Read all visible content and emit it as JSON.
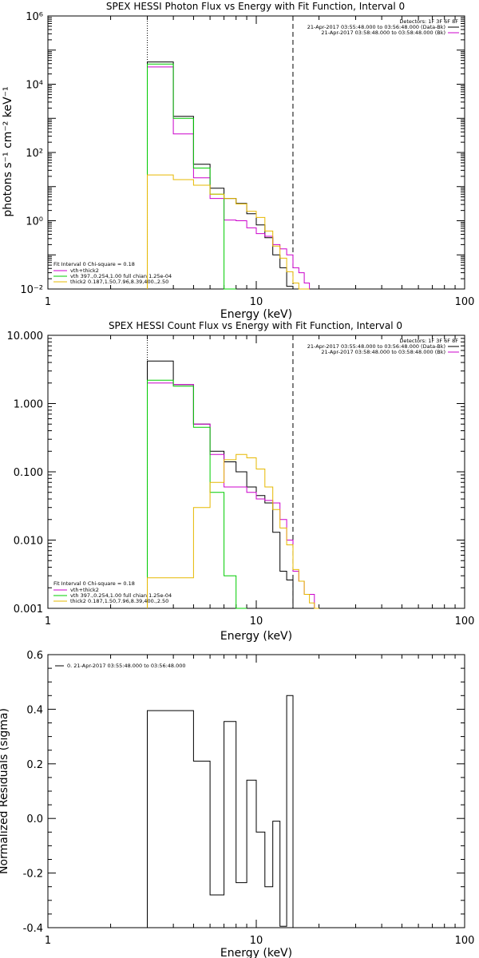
{
  "colors": {
    "total": "#000000",
    "vth_thick": "#cc00cc",
    "vth": "#00cc00",
    "thick": "#e6b800",
    "background": "#ffffff"
  },
  "chart_data": [
    {
      "type": "line",
      "title": "SPEX HESSI Photon Flux vs Energy with Fit Function, Interval 0",
      "xlabel": "Energy (keV)",
      "ylabel": "photons s⁻¹ cm⁻² keV⁻¹",
      "xscale": "log",
      "yscale": "log",
      "xlim": [
        1,
        100
      ],
      "ylim": [
        0.01,
        1000000
      ],
      "x_tick_labels": [
        "1",
        "10",
        "100"
      ],
      "y_tick_labels": [
        "10⁻²",
        "10⁰",
        "10²",
        "10⁴",
        "10⁶"
      ],
      "y_tick_values": [
        0.01,
        1,
        100,
        10000,
        1000000
      ],
      "vlines": [
        {
          "x": 3,
          "style": "dotted"
        },
        {
          "x": 15,
          "style": "dashed"
        }
      ],
      "annotation_lines": [
        "Detectors: 1F 3F 6F 8F",
        "21-Apr-2017 03:55:48.000 to 03:56:48.000 (Data-Bk)",
        "21-Apr-2017 03:58:48.000 to 03:58:48.000 (Bk)"
      ],
      "fit_legend": [
        "Fit Interval 0   Chi-square = 0.18",
        "vth+thick2",
        "vth 397.,0.254,1.00  full chian 1.25e-04",
        "thick2 0.187,1.50,7.96,8.39,400.,2.50"
      ],
      "bin_edges": [
        3,
        4,
        5,
        6,
        7,
        8,
        9,
        10,
        11,
        12,
        13,
        14,
        15,
        16,
        17,
        18
      ],
      "series": [
        {
          "name": "Data-Bk",
          "color_key": "total",
          "values": [
            45000,
            1150,
            45,
            9,
            4.5,
            3.2,
            1.6,
            0.75,
            0.32,
            0.1,
            0.042,
            0.012,
            null,
            null,
            null
          ]
        },
        {
          "name": "Bk",
          "color_key": "vth_thick",
          "values": [
            32000,
            350,
            18,
            4.5,
            1.05,
            1.0,
            0.62,
            0.42,
            0.35,
            0.2,
            0.15,
            0.1,
            0.042,
            0.03,
            0.015
          ]
        },
        {
          "name": "vth",
          "color_key": "vth",
          "values": [
            39000,
            1000,
            35,
            6,
            0.003,
            null,
            null,
            null,
            null,
            null,
            null,
            null,
            null,
            null,
            null
          ]
        },
        {
          "name": "thick2",
          "color_key": "thick",
          "values": [
            22,
            16,
            11,
            6,
            4.5,
            3.1,
            1.9,
            1.25,
            0.5,
            0.18,
            0.08,
            0.032,
            0.015,
            0.007,
            0.003
          ]
        }
      ]
    },
    {
      "type": "line",
      "title": "SPEX HESSI Count Flux vs Energy with Fit Function, Interval 0",
      "xlabel": "Energy (keV)",
      "ylabel": "",
      "xscale": "log",
      "yscale": "log",
      "xlim": [
        1,
        100
      ],
      "ylim": [
        0.001,
        10
      ],
      "x_tick_labels": [
        "1",
        "10",
        "100"
      ],
      "y_tick_labels": [
        "0.001",
        "0.010",
        "0.100",
        "1.000",
        "10.000"
      ],
      "y_tick_values": [
        0.001,
        0.01,
        0.1,
        1,
        10
      ],
      "vlines": [
        {
          "x": 3,
          "style": "dotted"
        },
        {
          "x": 15,
          "style": "dashed"
        }
      ],
      "annotation_lines": [
        "Detectors: 1F 3F 6F 8F",
        "21-Apr-2017 03:55:48.000 to 03:56:48.000 (Data-Bk)",
        "21-Apr-2017 03:58:48.000 to 03:58:48.000 (Bk)"
      ],
      "fit_legend": [
        "Fit Interval 0   Chi-square = 0.18",
        "vth+thick2",
        "vth 397.,0.254,1.00  full chian 1.25e-04",
        "thick2 0.187,1.50,7.96,8.39,400.,2.50"
      ],
      "bin_edges": [
        3,
        4,
        5,
        6,
        7,
        8,
        9,
        10,
        11,
        12,
        13,
        14,
        15,
        16,
        17,
        18,
        19,
        20
      ],
      "series": [
        {
          "name": "Data-Bk",
          "color_key": "total",
          "values": [
            4.2,
            1.9,
            0.5,
            0.2,
            0.14,
            0.1,
            0.06,
            0.045,
            0.035,
            0.013,
            0.0035,
            0.0026,
            null,
            null,
            null,
            null,
            null
          ]
        },
        {
          "name": "Bk",
          "color_key": "vth_thick",
          "values": [
            2.0,
            1.9,
            0.5,
            0.18,
            0.06,
            0.06,
            0.05,
            0.04,
            0.038,
            0.035,
            0.02,
            0.01,
            0.0035,
            0.0025,
            0.0016,
            0.0016,
            null
          ]
        },
        {
          "name": "vth",
          "color_key": "vth",
          "values": [
            2.2,
            1.8,
            0.45,
            0.05,
            0.003,
            0.0005,
            null,
            null,
            null,
            null,
            null,
            null,
            null,
            null,
            null,
            null,
            null
          ]
        },
        {
          "name": "thick2",
          "color_key": "thick",
          "values": [
            0.0028,
            0.0028,
            0.03,
            0.07,
            0.15,
            0.18,
            0.16,
            0.11,
            0.06,
            0.028,
            0.015,
            0.0085,
            0.0037,
            0.0025,
            0.0016,
            0.0012,
            0.001
          ]
        }
      ]
    },
    {
      "type": "line",
      "title": "",
      "xlabel": "Energy (keV)",
      "ylabel": "Normalized Residuals (sigma)",
      "xscale": "log",
      "yscale": "linear",
      "xlim": [
        1,
        100
      ],
      "ylim": [
        -0.4,
        0.6
      ],
      "x_tick_labels": [
        "1",
        "10",
        "100"
      ],
      "y_tick_labels": [
        "-0.4",
        "-0.2",
        "0.0",
        "0.2",
        "0.4",
        "0.6"
      ],
      "y_tick_values": [
        -0.4,
        -0.2,
        0.0,
        0.2,
        0.4,
        0.6
      ],
      "legend": "0. 21-Apr-2017 03:55:48.000 to 03:56:48.000",
      "bin_edges": [
        3,
        4,
        5,
        6,
        7,
        8,
        9,
        10,
        11,
        12,
        13,
        14,
        15
      ],
      "series": [
        {
          "name": "",
          "color_key": "total",
          "values": [
            0.395,
            0.395,
            0.21,
            -0.28,
            0.355,
            -0.235,
            0.14,
            -0.05,
            -0.25,
            -0.01,
            -0.395,
            0.45
          ]
        }
      ]
    }
  ]
}
